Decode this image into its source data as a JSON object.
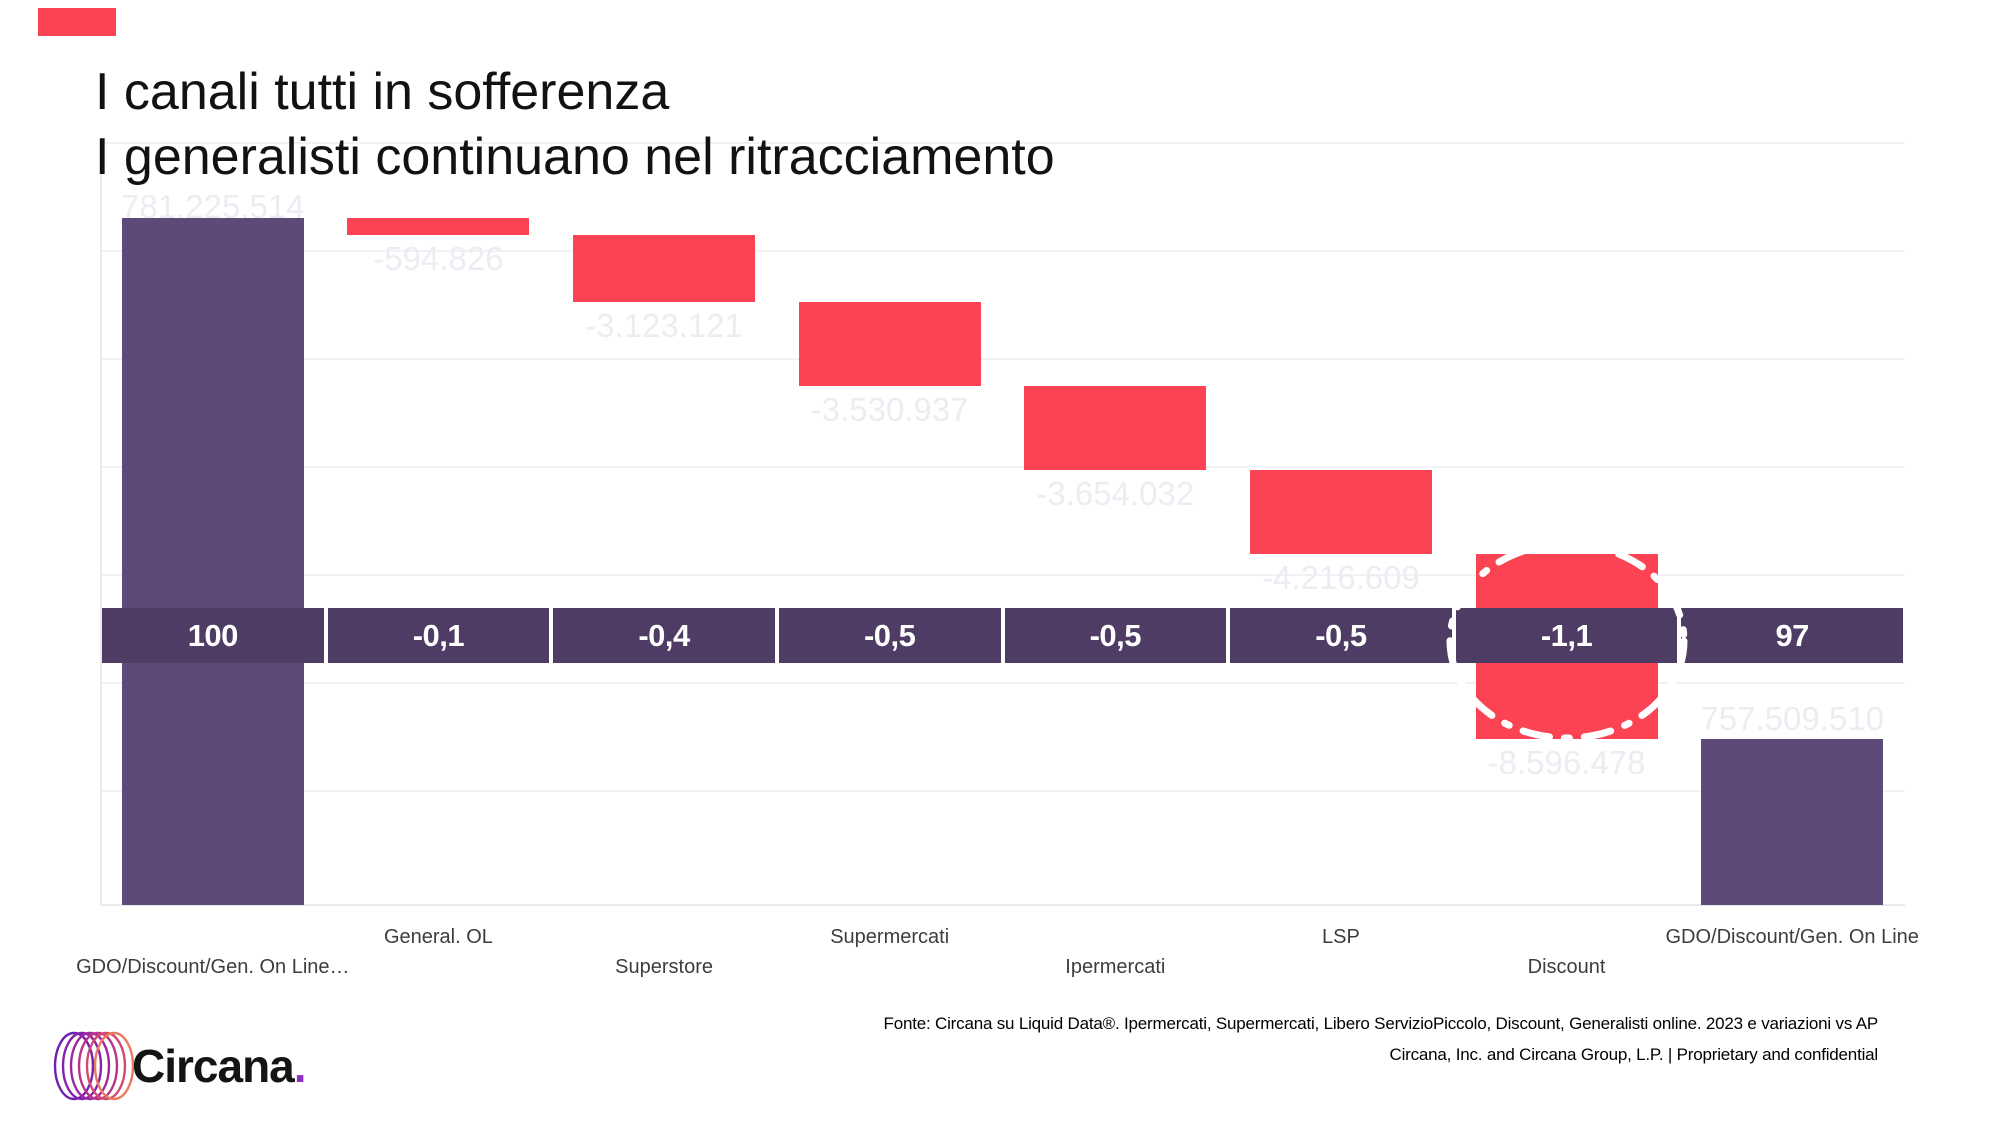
{
  "slide": {
    "title_line1": "I canali tutti in sofferenza",
    "title_line2": "I generalisti continuano nel ritracciamento",
    "footer_line1": "Fonte: Circana su Liquid Data®.  Ipermercati, Supermercati, Libero ServizioPiccolo, Discount, Generalisti online. 2023 e variazioni vs AP",
    "footer_line2": "Circana, Inc. and Circana Group, L.P. |  Proprietary and confidential",
    "logo_text": "Circana",
    "logo_dot": "."
  },
  "chart_data": {
    "type": "waterfall",
    "title": "I canali tutti in sofferenza — I generalisti continuano nel ritracciamento",
    "categories": [
      "GDO/Discount/Gen. On Line…",
      "General. OL",
      "Superstore",
      "Supermercati",
      "Ipermercati",
      "LSP",
      "Discount",
      "GDO/Discount/Gen. On Line"
    ],
    "bar_kinds": [
      "total",
      "drop",
      "drop",
      "drop",
      "drop",
      "drop",
      "drop",
      "total"
    ],
    "share_values": [
      100,
      -0.1,
      -0.4,
      -0.5,
      -0.5,
      -0.5,
      -1.1,
      97
    ],
    "share_labels": [
      "100",
      "-0,1",
      "-0,4",
      "-0,5",
      "-0,5",
      "-0,5",
      "-1,1",
      "97"
    ],
    "value_labels": [
      "781.225.514",
      "-594.826",
      "-3.123.121",
      "-3.530.937",
      "-3.654.032",
      "-4.216.609",
      "-8.596.478",
      "757.509.510"
    ],
    "highlight_category": "Discount",
    "legend": "none",
    "gridlines": "horizontal, faint",
    "colors": {
      "bar_total": "#5d4a78",
      "bar_drop": "#fb4353",
      "band": "#4e3c64",
      "highlight_ring": "#ffffff",
      "accent_red": "#fb4353",
      "logo_dot_purple": "#8b2fc9"
    }
  }
}
